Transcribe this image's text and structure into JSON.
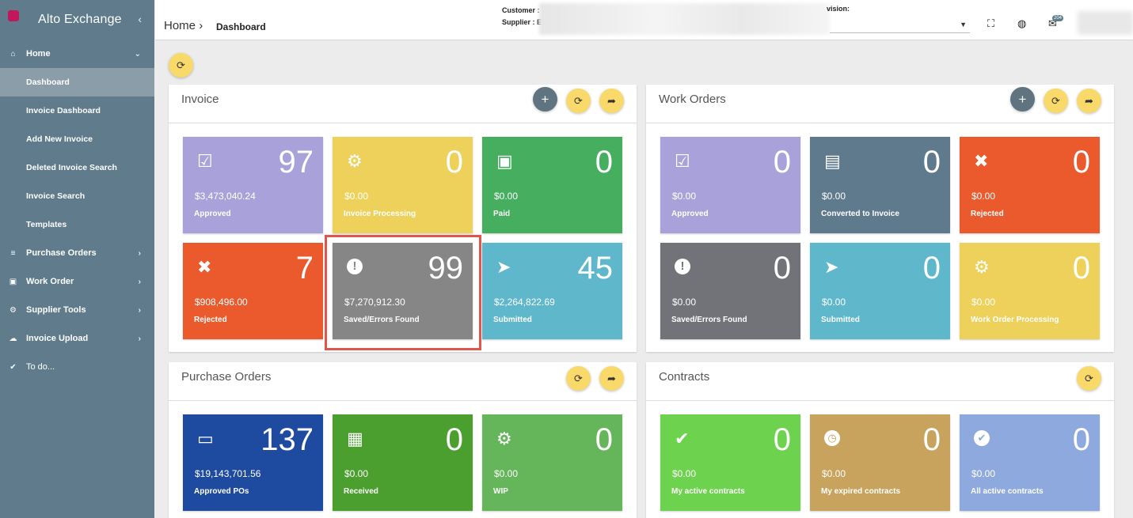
{
  "app": {
    "title": "Alto Exchange",
    "collapse_icon": "chevron-left"
  },
  "sidebar": {
    "home": {
      "label": "Home",
      "icon": "home-icon"
    },
    "home_items": [
      {
        "label": "Dashboard",
        "active": true
      },
      {
        "label": "Invoice Dashboard"
      },
      {
        "label": "Add New Invoice"
      },
      {
        "label": "Deleted Invoice Search"
      },
      {
        "label": "Invoice Search"
      },
      {
        "label": "Templates"
      }
    ],
    "sections": [
      {
        "label": "Purchase Orders",
        "icon": "list-icon"
      },
      {
        "label": "Work Order",
        "icon": "id-card-icon"
      },
      {
        "label": "Supplier Tools",
        "icon": "gear-icon"
      },
      {
        "label": "Invoice Upload",
        "icon": "cloud-upload-icon"
      },
      {
        "label": "To do...",
        "icon": "check-icon"
      }
    ]
  },
  "topbar": {
    "breadcrumb_root": "Home",
    "breadcrumb_sep": "›",
    "breadcrumb_current": "Dashboard",
    "customer_label": "Customer :",
    "supplier_label": "Supplier :",
    "supplier_fragment": "E",
    "division_label": "vision:",
    "unread_count": "204"
  },
  "panels": {
    "invoice": {
      "title": "Invoice",
      "tiles": [
        {
          "count": "97",
          "amount": "$3,473,040.24",
          "label": "Approved",
          "icon": "checkbox-icon",
          "color": "#a9a2da"
        },
        {
          "count": "0",
          "amount": "$0.00",
          "label": "Invoice Processing",
          "icon": "gears-icon",
          "color": "#eed15b"
        },
        {
          "count": "0",
          "amount": "$0.00",
          "label": "Paid",
          "icon": "money-icon",
          "color": "#46ae5f"
        },
        {
          "count": "7",
          "amount": "$908,496.00",
          "label": "Rejected",
          "icon": "close-icon",
          "color": "#ea5a2c"
        },
        {
          "count": "99",
          "amount": "$7,270,912.30",
          "label": "Saved/Errors Found",
          "icon": "exclamation-icon",
          "color": "#868686"
        },
        {
          "count": "45",
          "amount": "$2,264,822.69",
          "label": "Submitted",
          "icon": "paper-plane-icon",
          "color": "#5eb7cb"
        }
      ]
    },
    "work_orders": {
      "title": "Work Orders",
      "tiles": [
        {
          "count": "0",
          "amount": "$0.00",
          "label": "Approved",
          "icon": "checkbox-icon",
          "color": "#a9a2da"
        },
        {
          "count": "0",
          "amount": "$0.00",
          "label": "Converted to Invoice",
          "icon": "document-icon",
          "color": "#607a8d"
        },
        {
          "count": "0",
          "amount": "$0.00",
          "label": "Rejected",
          "icon": "close-icon",
          "color": "#ea5a2c"
        },
        {
          "count": "0",
          "amount": "$0.00",
          "label": "Saved/Errors Found",
          "icon": "exclamation-icon",
          "color": "#717378"
        },
        {
          "count": "0",
          "amount": "$0.00",
          "label": "Submitted",
          "icon": "paper-plane-icon",
          "color": "#5eb7cb"
        },
        {
          "count": "0",
          "amount": "$0.00",
          "label": "Work Order Processing",
          "icon": "gears-icon",
          "color": "#eed15b"
        }
      ]
    },
    "purchase_orders": {
      "title": "Purchase Orders",
      "tiles": [
        {
          "count": "137",
          "amount": "$19,143,701.56",
          "label": "Approved POs",
          "icon": "inbox-icon",
          "color": "#1e4aa0"
        },
        {
          "count": "0",
          "amount": "$0.00",
          "label": "Received",
          "icon": "calendar-check-icon",
          "color": "#4b9f2f"
        },
        {
          "count": "0",
          "amount": "$0.00",
          "label": "WIP",
          "icon": "gears-icon",
          "color": "#65b65a"
        }
      ]
    },
    "contracts": {
      "title": "Contracts",
      "tiles": [
        {
          "count": "0",
          "amount": "$0.00",
          "label": "My active contracts",
          "icon": "check-icon",
          "color": "#6dd24e"
        },
        {
          "count": "0",
          "amount": "$0.00",
          "label": "My expired contracts",
          "icon": "clock-icon",
          "color": "#c8a35d"
        },
        {
          "count": "0",
          "amount": "$0.00",
          "label": "All active contracts",
          "icon": "check-circle-icon",
          "color": "#8ea9dd"
        }
      ]
    }
  },
  "glyphs": {
    "refresh": "⟳",
    "share": "➦",
    "add": "+",
    "chevron_right": "›",
    "chevron_down": "⌄",
    "fullscreen": "⛶",
    "globe": "🌐",
    "mail": "✉",
    "caret_down": "▾",
    "checkbox": "☑",
    "gears": "⚙",
    "money": "💵",
    "close": "✖",
    "exclamation": "❗",
    "paper_plane": "➤",
    "document": "🗎",
    "inbox": "📥",
    "calendar_check": "📅",
    "check": "✔",
    "clock": "◷",
    "check_circle": "✔",
    "home": "⌂",
    "list": "≡",
    "id_card": "▣",
    "gear": "⚙",
    "cloud_upload": "☁"
  }
}
